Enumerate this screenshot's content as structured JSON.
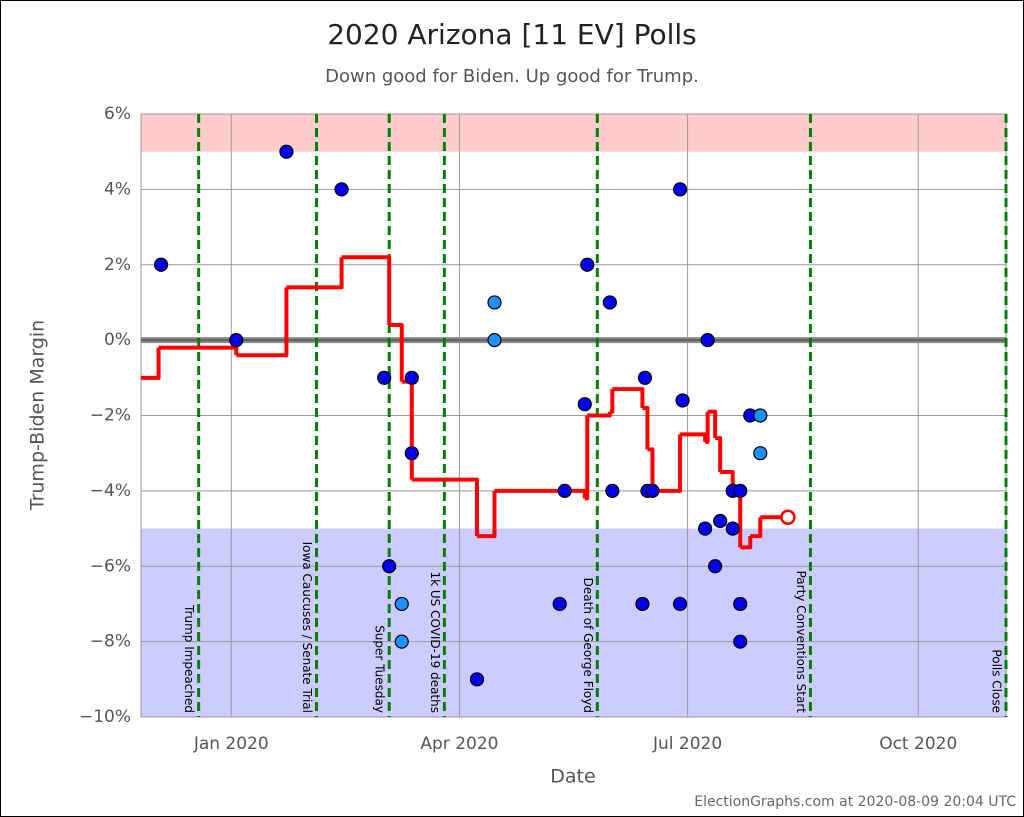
{
  "chart_data": {
    "type": "scatter",
    "title": "2020 Arizona [11 EV] Polls",
    "subtitle": "Down good for Biden. Up good for Trump.",
    "x_label": "Date",
    "y_label": "Trump-Biden Margin",
    "credit": "ElectionGraphs.com at 2020-08-09 20:04 UTC",
    "xlim": [
      -36,
      309
    ],
    "ylim": [
      -10,
      6
    ],
    "xticks": [
      {
        "value": 0,
        "label": "Jan 2020"
      },
      {
        "value": 91,
        "label": "Apr 2020"
      },
      {
        "value": 182,
        "label": "Jul 2020"
      },
      {
        "value": 274,
        "label": "Oct 2020"
      }
    ],
    "yticks": [
      {
        "value": 6,
        "label": "6%"
      },
      {
        "value": 4,
        "label": "4%"
      },
      {
        "value": 2,
        "label": "2%"
      },
      {
        "value": 0,
        "label": "0%"
      },
      {
        "value": -2,
        "label": "−2%"
      },
      {
        "value": -4,
        "label": "−4%"
      },
      {
        "value": -6,
        "label": "−6%"
      },
      {
        "value": -8,
        "label": "−8%"
      },
      {
        "value": -10,
        "label": "−10%"
      }
    ],
    "grid": true,
    "zero_line": 0,
    "bands": [
      {
        "from": 5,
        "to": 6,
        "color": "#ffcccc"
      },
      {
        "from": -10,
        "to": -5,
        "color": "#ccccff"
      }
    ],
    "events": [
      {
        "x": -13,
        "label": "Trump Impeached"
      },
      {
        "x": 34,
        "label": "Iowa Caucuses / Senate Trial"
      },
      {
        "x": 63,
        "label": "Super Tuesday"
      },
      {
        "x": 85,
        "label": "1k US COVID-19 deaths"
      },
      {
        "x": 146,
        "label": "Death of George Floyd"
      },
      {
        "x": 231,
        "label": "Party Conventions Start"
      },
      {
        "x": 309,
        "label": "Polls Close"
      }
    ],
    "series": [
      {
        "type": "scatter",
        "color": "#0000ee",
        "x": [
          -28,
          2,
          22,
          44,
          61,
          63,
          72,
          72,
          98,
          131,
          133,
          141,
          142,
          151,
          152,
          164,
          165,
          166,
          168,
          179,
          179,
          180,
          189,
          190,
          193,
          195,
          200,
          200,
          203,
          203,
          203,
          207
        ],
        "values": [
          2,
          0,
          5,
          4,
          -1,
          -6,
          -1,
          -3,
          -9,
          -7,
          -4,
          -1.7,
          2,
          1,
          -4,
          -7,
          -1,
          -4,
          -4,
          4,
          -7,
          -1.6,
          -5,
          0,
          -6,
          -4.8,
          -5,
          -4,
          -4,
          -7,
          -8,
          -2
        ]
      },
      {
        "type": "scatter",
        "color": "#1e90ff",
        "x": [
          68,
          68,
          105,
          105,
          211,
          211
        ],
        "values": [
          -7,
          -8,
          1,
          0,
          -2,
          -3
        ]
      },
      {
        "type": "step",
        "color": "#ff0000",
        "x": [
          -36,
          -29,
          2,
          22,
          44,
          63,
          68,
          72,
          98,
          105,
          141,
          142,
          151,
          152,
          164,
          166,
          168,
          179,
          189,
          190,
          193,
          195,
          200,
          203,
          207,
          211,
          222
        ],
        "values": [
          -1,
          -0.2,
          -0.4,
          1.4,
          2.2,
          0.4,
          -1.1,
          -3.7,
          -5.2,
          -4,
          -4.2,
          -2,
          -1.9,
          -1.3,
          -1.8,
          -2.9,
          -4,
          -2.5,
          -2.7,
          -1.9,
          -2.6,
          -3.5,
          -4,
          -5.5,
          -5.2,
          -4.7,
          -4.7
        ]
      }
    ]
  }
}
